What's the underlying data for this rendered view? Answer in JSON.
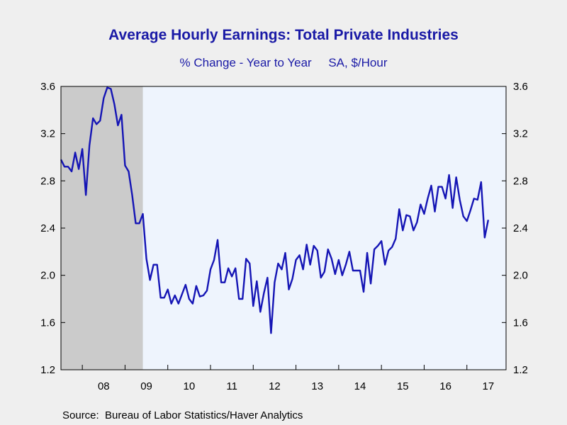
{
  "colors": {
    "background": "#efefef",
    "plot_area": "#eef4fd",
    "recession_shade": "#cbcbcb",
    "series_line": "#1515b5",
    "title_text": "#1a1aa6"
  },
  "chart_data": {
    "type": "line",
    "title": "Average Hourly Earnings: Total Private Industries",
    "subtitle": "% Change - Year to Year     SA, $/Hour",
    "xlabel": "",
    "ylabel": "",
    "ylim": [
      1.2,
      3.6
    ],
    "yticks": [
      1.2,
      1.6,
      2.0,
      2.4,
      2.8,
      3.2,
      3.6
    ],
    "ytick_labels": [
      "1.2",
      "1.6",
      "2.0",
      "2.4",
      "2.8",
      "3.2",
      "3.6"
    ],
    "right_axis_mirrored": true,
    "grid": false,
    "x_range": [
      "2007-07",
      "2017-12"
    ],
    "x_tick_labels": [
      {
        "label": "08",
        "year": 2008
      },
      {
        "label": "09",
        "year": 2009
      },
      {
        "label": "10",
        "year": 2010
      },
      {
        "label": "11",
        "year": 2011
      },
      {
        "label": "12",
        "year": 2012
      },
      {
        "label": "13",
        "year": 2013
      },
      {
        "label": "14",
        "year": 2014
      },
      {
        "label": "15",
        "year": 2015
      },
      {
        "label": "16",
        "year": 2016
      },
      {
        "label": "17",
        "year": 2017
      }
    ],
    "shaded_period": {
      "start": "2007-12",
      "end": "2009-06",
      "meaning": "recession"
    },
    "series": [
      {
        "start": "2007-07",
        "frequency": "monthly",
        "values": [
          2.98,
          2.92,
          2.92,
          2.88,
          3.04,
          2.9,
          3.07,
          2.68,
          3.1,
          3.33,
          3.28,
          3.31,
          3.5,
          3.59,
          3.58,
          3.45,
          3.27,
          3.36,
          2.93,
          2.88,
          2.68,
          2.44,
          2.44,
          2.52,
          2.14,
          1.96,
          2.09,
          2.09,
          1.81,
          1.81,
          1.88,
          1.76,
          1.83,
          1.76,
          1.84,
          1.92,
          1.8,
          1.76,
          1.91,
          1.82,
          1.83,
          1.87,
          2.05,
          2.13,
          2.3,
          1.94,
          1.94,
          2.06,
          1.99,
          2.06,
          1.8,
          1.8,
          2.14,
          2.1,
          1.74,
          1.95,
          1.69,
          1.85,
          1.98,
          1.51,
          1.94,
          2.1,
          2.05,
          2.19,
          1.88,
          1.97,
          2.13,
          2.17,
          2.05,
          2.26,
          2.09,
          2.25,
          2.21,
          1.98,
          2.03,
          2.22,
          2.14,
          2.01,
          2.13,
          2.0,
          2.09,
          2.2,
          2.04,
          2.04,
          2.04,
          1.86,
          2.19,
          1.93,
          2.22,
          2.25,
          2.29,
          2.09,
          2.21,
          2.24,
          2.31,
          2.56,
          2.38,
          2.51,
          2.5,
          2.38,
          2.45,
          2.6,
          2.52,
          2.65,
          2.76,
          2.54,
          2.75,
          2.75,
          2.65,
          2.85,
          2.57,
          2.83,
          2.64,
          2.5,
          2.46,
          2.55,
          2.65,
          2.64,
          2.79,
          2.32,
          2.47
        ]
      }
    ]
  },
  "source": "Source:  Bureau of Labor Statistics/Haver Analytics"
}
